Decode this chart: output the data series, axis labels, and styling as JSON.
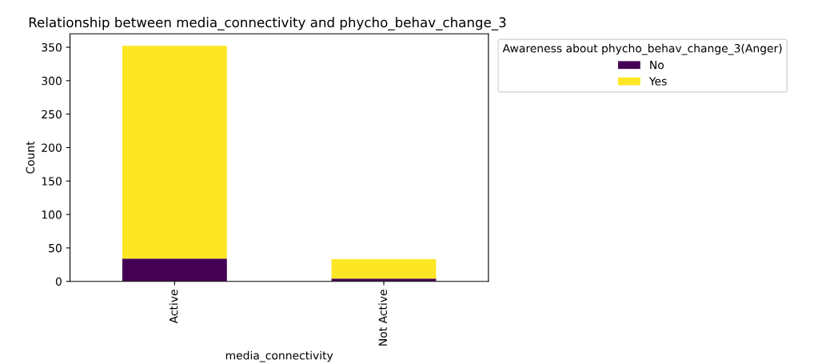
{
  "chart_data": {
    "type": "bar",
    "title": "Relationship between media_connectivity and phycho_behav_change_3",
    "xlabel": "media_connectivity",
    "ylabel": "Count",
    "legend_title": "Awareness about phycho_behav_change_3(Anger)",
    "categories": [
      "Active",
      "Not Active"
    ],
    "stacked": true,
    "series": [
      {
        "name": "No",
        "color": "#440154",
        "values": [
          34,
          4
        ]
      },
      {
        "name": "Yes",
        "color": "#fde725",
        "values": [
          318,
          29
        ]
      }
    ],
    "ylim": [
      0,
      370
    ],
    "yticks": [
      0,
      50,
      100,
      150,
      200,
      250,
      300,
      350
    ],
    "grid": false,
    "legend": "top right"
  }
}
